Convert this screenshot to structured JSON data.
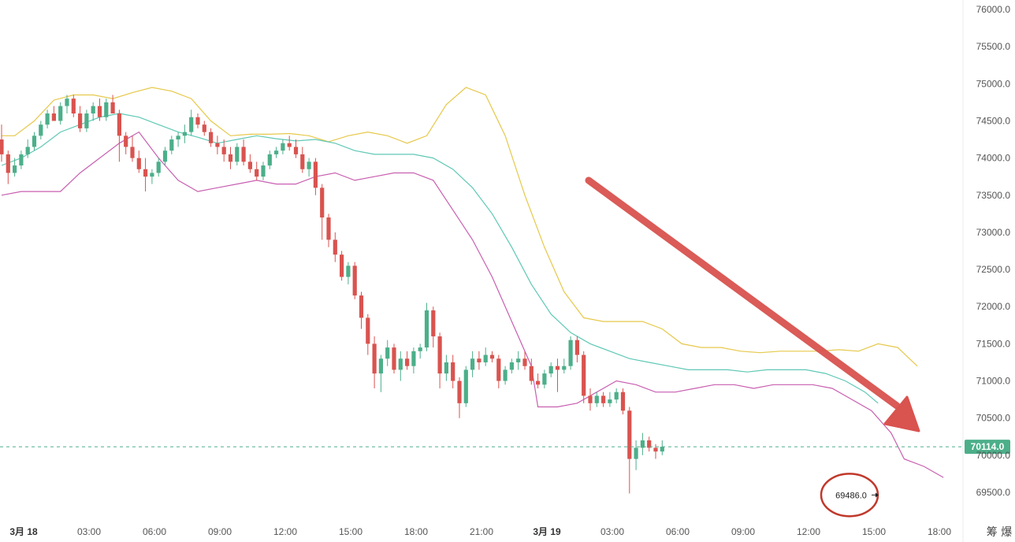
{
  "chart_data": {
    "type": "candlestick",
    "y_axis": {
      "ticks": [
        "76000.0",
        "75500.0",
        "75000.0",
        "74500.0",
        "74000.0",
        "73500.0",
        "73000.0",
        "72500.0",
        "72000.0",
        "71500.0",
        "71000.0",
        "70500.0",
        "70000.0",
        "69500.0"
      ],
      "range": [
        69300,
        76050
      ],
      "position": "right"
    },
    "x_axis": {
      "ticks": [
        "3月 18",
        "03:00",
        "06:00",
        "09:00",
        "12:00",
        "15:00",
        "18:00",
        "21:00",
        "3月 19",
        "03:00",
        "06:00",
        "09:00",
        "12:00",
        "15:00",
        "18:00"
      ],
      "bold_ticks": [
        "3月 18",
        "3月 19"
      ]
    },
    "current_price": "70114.0",
    "low_marker": "69486.0",
    "corner_label": "筹 爆",
    "colors": {
      "up": "#4caf8a",
      "down": "#d9534f",
      "bb_upper": "#e6c84a",
      "bb_middle": "#5fc8b6",
      "bb_lower": "#c85fb0",
      "price_line": "#4caf8a",
      "arrow": "#d9534f",
      "circle": "#c0392b"
    },
    "bollinger": {
      "upper": [
        [
          0,
          74300
        ],
        [
          2,
          74300
        ],
        [
          5,
          74500
        ],
        [
          8,
          74780
        ],
        [
          11,
          74850
        ],
        [
          14,
          74850
        ],
        [
          17,
          74800
        ],
        [
          20,
          74880
        ],
        [
          23,
          74950
        ],
        [
          26,
          74900
        ],
        [
          29,
          74800
        ],
        [
          32,
          74500
        ],
        [
          35,
          74300
        ],
        [
          38,
          74320
        ],
        [
          41,
          74320
        ],
        [
          44,
          74330
        ],
        [
          47,
          74300
        ],
        [
          50,
          74220
        ],
        [
          53,
          74300
        ],
        [
          56,
          74350
        ],
        [
          59,
          74300
        ],
        [
          62,
          74200
        ],
        [
          65,
          74300
        ],
        [
          68,
          74720
        ],
        [
          71,
          74950
        ],
        [
          74,
          74850
        ],
        [
          77,
          74300
        ],
        [
          80,
          73500
        ],
        [
          83,
          72800
        ],
        [
          86,
          72200
        ],
        [
          89,
          71850
        ],
        [
          92,
          71800
        ],
        [
          95,
          71800
        ],
        [
          98,
          71800
        ],
        [
          101,
          71700
        ],
        [
          104,
          71500
        ],
        [
          107,
          71450
        ],
        [
          110,
          71450
        ],
        [
          113,
          71400
        ],
        [
          116,
          71380
        ],
        [
          119,
          71400
        ],
        [
          122,
          71400
        ],
        [
          125,
          71400
        ],
        [
          128,
          71420
        ],
        [
          131,
          71400
        ],
        [
          134,
          71500
        ],
        [
          137,
          71450
        ],
        [
          140,
          71200
        ]
      ],
      "middle": [
        [
          0,
          73900
        ],
        [
          3,
          74000
        ],
        [
          6,
          74150
        ],
        [
          9,
          74350
        ],
        [
          12,
          74450
        ],
        [
          15,
          74550
        ],
        [
          18,
          74600
        ],
        [
          21,
          74550
        ],
        [
          24,
          74450
        ],
        [
          27,
          74350
        ],
        [
          30,
          74280
        ],
        [
          33,
          74200
        ],
        [
          36,
          74250
        ],
        [
          39,
          74300
        ],
        [
          42,
          74260
        ],
        [
          45,
          74230
        ],
        [
          48,
          74250
        ],
        [
          51,
          74200
        ],
        [
          54,
          74100
        ],
        [
          57,
          74050
        ],
        [
          60,
          74050
        ],
        [
          63,
          74050
        ],
        [
          66,
          74000
        ],
        [
          69,
          73850
        ],
        [
          72,
          73600
        ],
        [
          75,
          73250
        ],
        [
          78,
          72800
        ],
        [
          81,
          72300
        ],
        [
          84,
          71900
        ],
        [
          87,
          71650
        ],
        [
          90,
          71500
        ],
        [
          93,
          71400
        ],
        [
          96,
          71300
        ],
        [
          99,
          71250
        ],
        [
          102,
          71200
        ],
        [
          105,
          71150
        ],
        [
          108,
          71150
        ],
        [
          111,
          71150
        ],
        [
          114,
          71120
        ],
        [
          117,
          71150
        ],
        [
          120,
          71150
        ],
        [
          123,
          71150
        ],
        [
          126,
          71100
        ],
        [
          129,
          71000
        ],
        [
          132,
          70850
        ],
        [
          134,
          70700
        ]
      ],
      "lower": [
        [
          0,
          73500
        ],
        [
          3,
          73550
        ],
        [
          6,
          73550
        ],
        [
          9,
          73550
        ],
        [
          12,
          73800
        ],
        [
          15,
          74000
        ],
        [
          18,
          74200
        ],
        [
          21,
          74350
        ],
        [
          24,
          74000
        ],
        [
          27,
          73700
        ],
        [
          30,
          73550
        ],
        [
          33,
          73600
        ],
        [
          36,
          73650
        ],
        [
          39,
          73700
        ],
        [
          42,
          73650
        ],
        [
          45,
          73650
        ],
        [
          48,
          73750
        ],
        [
          51,
          73800
        ],
        [
          54,
          73700
        ],
        [
          57,
          73750
        ],
        [
          60,
          73800
        ],
        [
          63,
          73800
        ],
        [
          66,
          73700
        ],
        [
          69,
          73300
        ],
        [
          72,
          72900
        ],
        [
          75,
          72400
        ],
        [
          78,
          71800
        ],
        [
          81,
          71200
        ],
        [
          82,
          70650
        ],
        [
          85,
          70650
        ],
        [
          88,
          70700
        ],
        [
          91,
          70850
        ],
        [
          94,
          71000
        ],
        [
          97,
          70950
        ],
        [
          100,
          70850
        ],
        [
          103,
          70850
        ],
        [
          106,
          70900
        ],
        [
          109,
          70950
        ],
        [
          112,
          70950
        ],
        [
          115,
          70900
        ],
        [
          118,
          70950
        ],
        [
          121,
          70950
        ],
        [
          124,
          70950
        ],
        [
          127,
          70900
        ],
        [
          130,
          70750
        ],
        [
          133,
          70600
        ],
        [
          136,
          70300
        ],
        [
          138,
          69950
        ],
        [
          141,
          69850
        ],
        [
          144,
          69700
        ]
      ]
    },
    "candles": [
      [
        74250,
        74450,
        73950,
        74050
      ],
      [
        74050,
        74100,
        73650,
        73800
      ],
      [
        73800,
        74000,
        73750,
        73900
      ],
      [
        73900,
        74100,
        73850,
        74050
      ],
      [
        74050,
        74250,
        74000,
        74150
      ],
      [
        74150,
        74350,
        74100,
        74300
      ],
      [
        74300,
        74500,
        74250,
        74450
      ],
      [
        74450,
        74650,
        74400,
        74600
      ],
      [
        74600,
        74700,
        74500,
        74500
      ],
      [
        74500,
        74750,
        74450,
        74700
      ],
      [
        74700,
        74850,
        74600,
        74800
      ],
      [
        74800,
        74850,
        74550,
        74600
      ],
      [
        74600,
        74700,
        74350,
        74400
      ],
      [
        74400,
        74650,
        74350,
        74600
      ],
      [
        74600,
        74750,
        74500,
        74700
      ],
      [
        74700,
        74800,
        74500,
        74550
      ],
      [
        74550,
        74800,
        74500,
        74750
      ],
      [
        74750,
        74850,
        74600,
        74600
      ],
      [
        74600,
        74650,
        73950,
        74300
      ],
      [
        74300,
        74350,
        74050,
        74150
      ],
      [
        74150,
        74300,
        73950,
        74000
      ],
      [
        74000,
        74100,
        73800,
        73850
      ],
      [
        73850,
        74000,
        73550,
        73750
      ],
      [
        73750,
        73850,
        73650,
        73800
      ],
      [
        73800,
        74000,
        73750,
        73950
      ],
      [
        73950,
        74150,
        73900,
        74100
      ],
      [
        74100,
        74300,
        74050,
        74250
      ],
      [
        74250,
        74350,
        74150,
        74300
      ],
      [
        74300,
        74450,
        74200,
        74350
      ],
      [
        74350,
        74650,
        74300,
        74550
      ],
      [
        74550,
        74600,
        74400,
        74450
      ],
      [
        74450,
        74500,
        74300,
        74350
      ],
      [
        74350,
        74400,
        74150,
        74200
      ],
      [
        74200,
        74300,
        74050,
        74150
      ],
      [
        74150,
        74250,
        73950,
        74050
      ],
      [
        74050,
        74150,
        73850,
        73950
      ],
      [
        73950,
        74200,
        73900,
        74150
      ],
      [
        74150,
        74250,
        73900,
        73950
      ],
      [
        73950,
        74050,
        73800,
        73850
      ],
      [
        73850,
        73950,
        73700,
        73750
      ],
      [
        73750,
        73950,
        73700,
        73900
      ],
      [
        73900,
        74100,
        73850,
        74050
      ],
      [
        74050,
        74150,
        74000,
        74100
      ],
      [
        74100,
        74250,
        74050,
        74200
      ],
      [
        74200,
        74300,
        74100,
        74150
      ],
      [
        74150,
        74250,
        74000,
        74050
      ],
      [
        74050,
        74150,
        73800,
        73850
      ],
      [
        73850,
        74000,
        73750,
        73950
      ],
      [
        73950,
        74000,
        73500,
        73600
      ],
      [
        73600,
        73650,
        72900,
        73200
      ],
      [
        73200,
        73250,
        72800,
        72900
      ],
      [
        72900,
        73000,
        72600,
        72700
      ],
      [
        72700,
        72750,
        72350,
        72400
      ],
      [
        72400,
        72600,
        72300,
        72550
      ],
      [
        72550,
        72600,
        72100,
        72150
      ],
      [
        72150,
        72200,
        71700,
        71850
      ],
      [
        71850,
        71900,
        71350,
        71500
      ],
      [
        71500,
        71600,
        70900,
        71100
      ],
      [
        71100,
        71350,
        70850,
        71300
      ],
      [
        71300,
        71550,
        71200,
        71450
      ],
      [
        71450,
        71500,
        71100,
        71150
      ],
      [
        71150,
        71400,
        71000,
        71300
      ],
      [
        71300,
        71400,
        71150,
        71200
      ],
      [
        71200,
        71450,
        71100,
        71400
      ],
      [
        71400,
        71500,
        71300,
        71450
      ],
      [
        71450,
        72050,
        71400,
        71950
      ],
      [
        71950,
        72000,
        71450,
        71600
      ],
      [
        71600,
        71650,
        70900,
        71100
      ],
      [
        71100,
        71350,
        71000,
        71250
      ],
      [
        71250,
        71350,
        70900,
        71000
      ],
      [
        71000,
        71050,
        70500,
        70700
      ],
      [
        70700,
        71200,
        70650,
        71150
      ],
      [
        71150,
        71400,
        71050,
        71300
      ],
      [
        71300,
        71400,
        71150,
        71250
      ],
      [
        71250,
        71450,
        71200,
        71350
      ],
      [
        71350,
        71400,
        71250,
        71300
      ],
      [
        71300,
        71350,
        70900,
        71000
      ],
      [
        71000,
        71200,
        70950,
        71150
      ],
      [
        71150,
        71300,
        71100,
        71250
      ],
      [
        71250,
        71400,
        71150,
        71300
      ],
      [
        71300,
        71400,
        71150,
        71200
      ],
      [
        71200,
        71300,
        70950,
        71000
      ],
      [
        71000,
        71100,
        70900,
        70950
      ],
      [
        70950,
        71150,
        70900,
        71100
      ],
      [
        71100,
        71250,
        71050,
        71200
      ],
      [
        71200,
        71300,
        70850,
        71150
      ],
      [
        71150,
        71300,
        71100,
        71200
      ],
      [
        71200,
        71600,
        71150,
        71550
      ],
      [
        71550,
        71600,
        71250,
        71350
      ],
      [
        71350,
        71400,
        70700,
        70800
      ],
      [
        70800,
        70900,
        70600,
        70700
      ],
      [
        70700,
        70850,
        70650,
        70800
      ],
      [
        70800,
        70850,
        70650,
        70700
      ],
      [
        70700,
        70850,
        70650,
        70750
      ],
      [
        70750,
        70900,
        70700,
        70850
      ],
      [
        70850,
        70900,
        70550,
        70600
      ],
      [
        70600,
        70650,
        69486,
        69950
      ],
      [
        69950,
        70200,
        69800,
        70100
      ],
      [
        70100,
        70300,
        70000,
        70200
      ],
      [
        70200,
        70250,
        70050,
        70100
      ],
      [
        70100,
        70150,
        69950,
        70050
      ],
      [
        70050,
        70200,
        70000,
        70114
      ]
    ]
  }
}
